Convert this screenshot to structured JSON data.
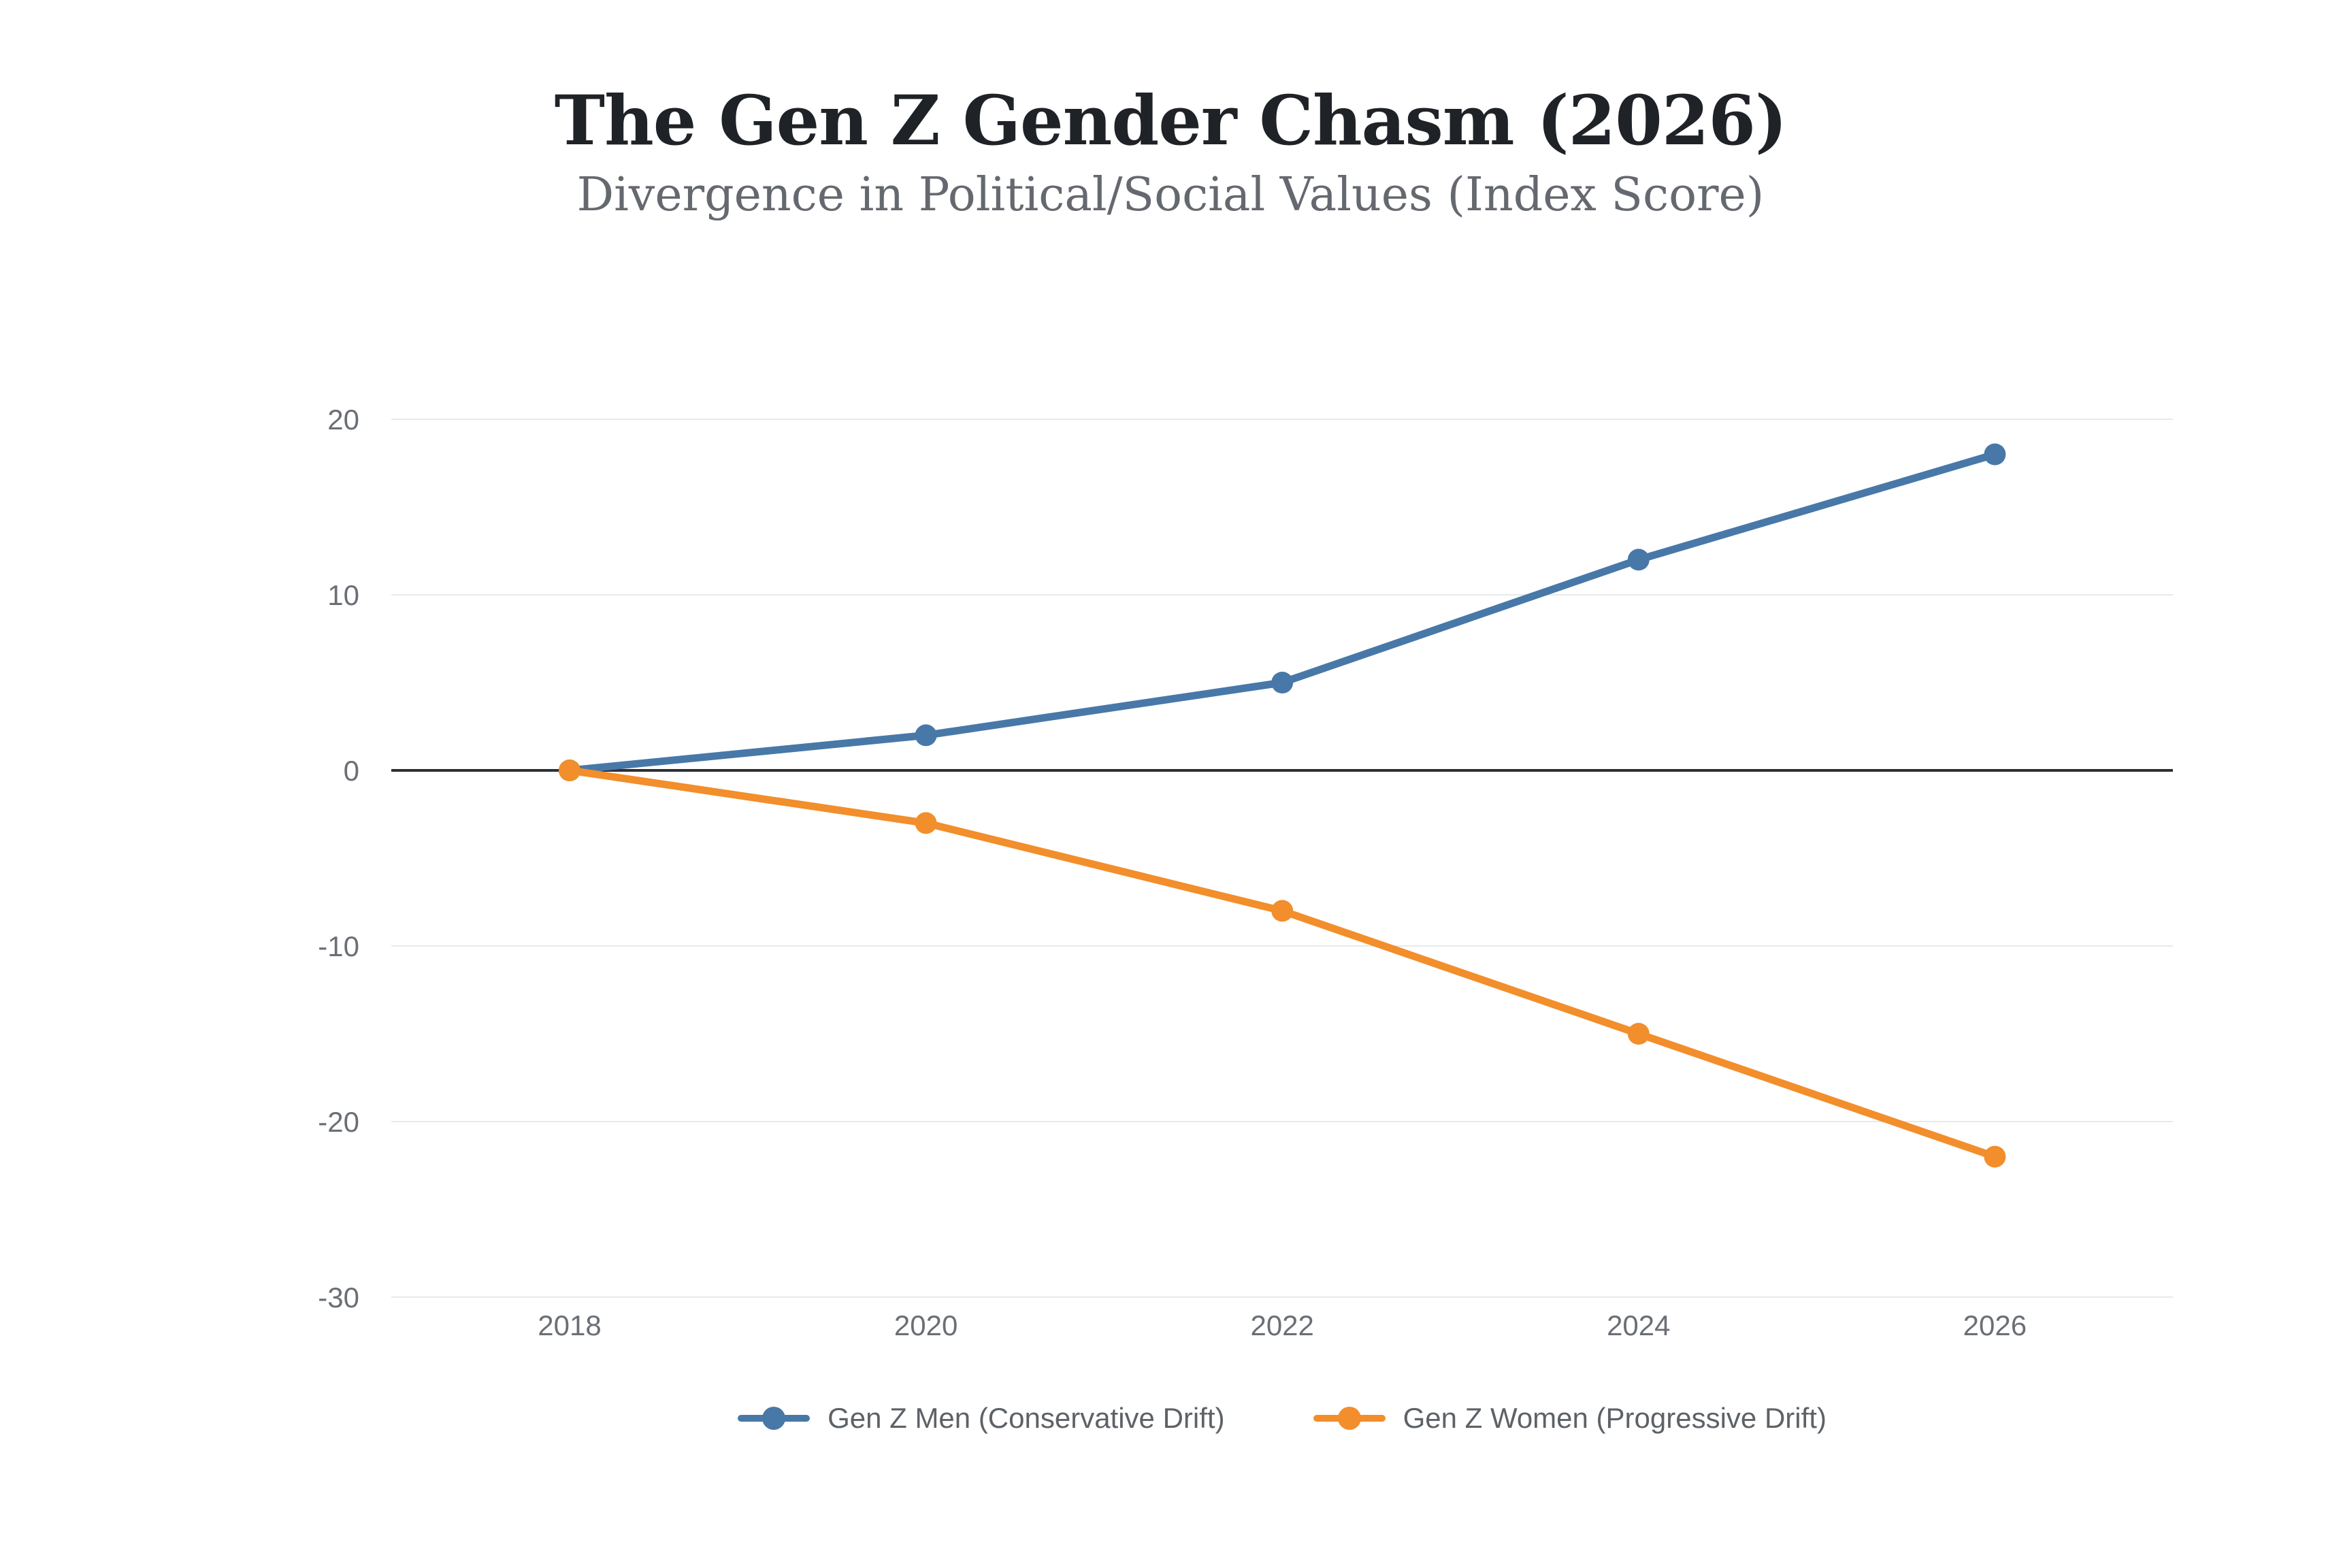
{
  "header": {
    "title": "The Gen Z Gender Chasm (2026)",
    "subtitle": "Divergence in Political/Social Values (Index Score)"
  },
  "chart_data": {
    "type": "line",
    "title": "The Gen Z Gender Chasm (2026)",
    "subtitle": "Divergence in Political/Social Values (Index Score)",
    "categories": [
      "2018",
      "2020",
      "2022",
      "2024",
      "2026"
    ],
    "series": [
      {
        "name": "Gen Z Men (Conservative Drift)",
        "color": "#4878a8",
        "values": [
          0,
          2,
          5,
          12,
          18
        ]
      },
      {
        "name": "Gen Z Women (Progressive Drift)",
        "color": "#f28e2b",
        "values": [
          0,
          -3,
          -8,
          -15,
          -22
        ]
      }
    ],
    "yticks": [
      20,
      10,
      0,
      -10,
      -20,
      -30
    ],
    "ylim": [
      -30,
      20
    ],
    "xlabel": "",
    "ylabel": "",
    "grid": true,
    "zero_line": true,
    "legend_position": "bottom",
    "colors": {
      "background": "#ffffff",
      "grid": "#e8e9eb",
      "zero_line": "#2d2f33",
      "tick_text": "#6a6f75",
      "legend_text": "#5d6267",
      "title_text": "#1f2227",
      "subtitle_text": "#65696f"
    }
  }
}
